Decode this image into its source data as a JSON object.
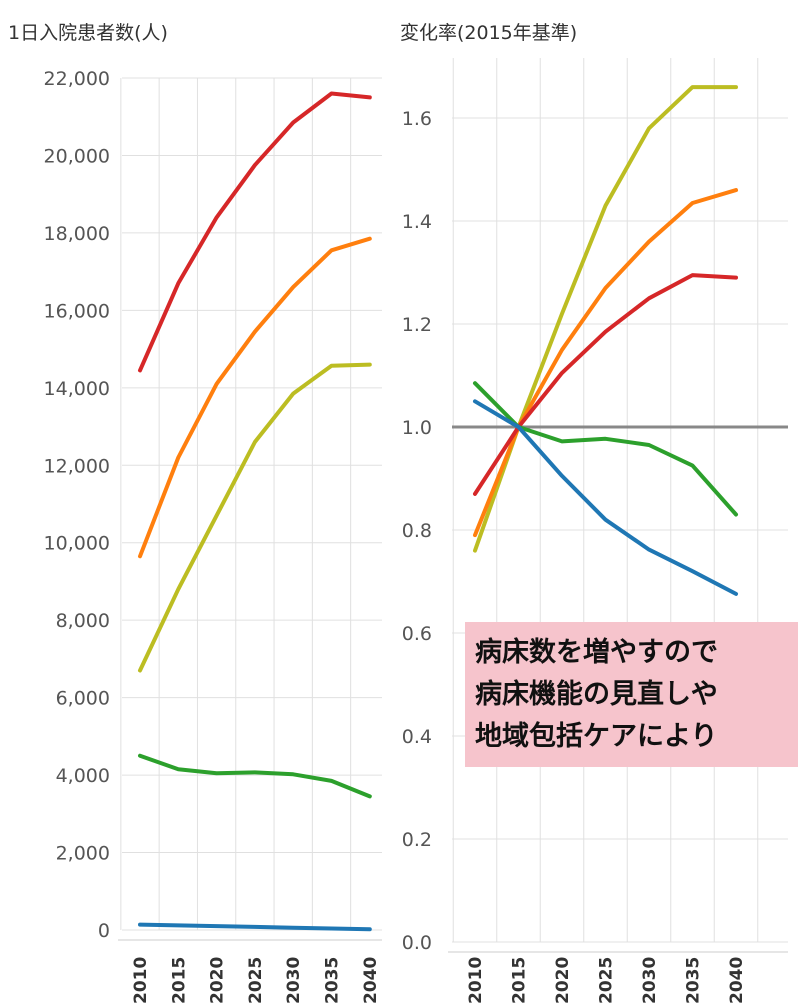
{
  "chart_data": [
    {
      "type": "line",
      "title": "1日入院患者数(人)",
      "x": [
        2012,
        2017,
        2022,
        2027,
        2032,
        2037,
        2042
      ],
      "xticks": [
        "2010",
        "2015",
        "2020",
        "2025",
        "2030",
        "2035",
        "2040"
      ],
      "ylim": [
        0,
        22000
      ],
      "yticks": [
        "0",
        "2,000",
        "4,000",
        "6,000",
        "8,000",
        "10,000",
        "12,000",
        "14,000",
        "16,000",
        "18,000",
        "20,000",
        "22,000"
      ],
      "grid": true,
      "series": [
        {
          "color": "#d62728",
          "values": [
            14450,
            16700,
            18400,
            19750,
            20850,
            21600,
            21500
          ]
        },
        {
          "color": "#ff7f0e",
          "values": [
            9650,
            12200,
            14100,
            15450,
            16600,
            17550,
            17850
          ]
        },
        {
          "color": "#bcbd22",
          "values": [
            6700,
            8800,
            10700,
            12600,
            13850,
            14570,
            14600
          ]
        },
        {
          "color": "#2ca02c",
          "values": [
            4500,
            4150,
            4050,
            4070,
            4020,
            3850,
            3450
          ]
        },
        {
          "color": "#1f77b4",
          "values": [
            140,
            120,
            100,
            80,
            60,
            40,
            20
          ]
        }
      ]
    },
    {
      "type": "line",
      "title": "変化率(2015年基準)",
      "x": [
        2012,
        2017,
        2022,
        2027,
        2032,
        2037,
        2042
      ],
      "xticks": [
        "2010",
        "2015",
        "2020",
        "2025",
        "2030",
        "2035",
        "2040"
      ],
      "ylim": [
        0,
        1.7
      ],
      "yticks": [
        "0.0",
        "0.2",
        "0.4",
        "0.6",
        "0.8",
        "1.0",
        "1.2",
        "1.4",
        "1.6"
      ],
      "grid": true,
      "reference_line": {
        "value": 1.0,
        "color": "#888888"
      },
      "series": [
        {
          "color": "#bcbd22",
          "values": [
            0.76,
            1.0,
            1.22,
            1.43,
            1.58,
            1.66,
            1.66
          ]
        },
        {
          "color": "#ff7f0e",
          "values": [
            0.79,
            1.0,
            1.15,
            1.27,
            1.36,
            1.435,
            1.46
          ]
        },
        {
          "color": "#d62728",
          "values": [
            0.87,
            1.0,
            1.105,
            1.185,
            1.25,
            1.295,
            1.29
          ]
        },
        {
          "color": "#2ca02c",
          "values": [
            1.085,
            1.0,
            0.972,
            0.977,
            0.965,
            0.925,
            0.83
          ]
        },
        {
          "color": "#1f77b4",
          "values": [
            1.05,
            1.0,
            0.905,
            0.82,
            0.762,
            0.72,
            0.676
          ]
        }
      ]
    }
  ],
  "annotation": {
    "lines": [
      "病床数を増やすので",
      "病床機能の見直しや",
      "地域包括ケアにより"
    ]
  }
}
